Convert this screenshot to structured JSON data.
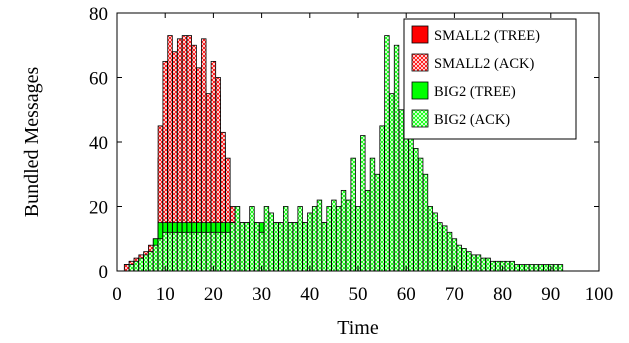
{
  "chart_data": {
    "type": "bar",
    "title": "",
    "xlabel": "Time",
    "ylabel": "Bundled Messages",
    "xlim": [
      0,
      100
    ],
    "ylim": [
      0,
      80
    ],
    "xticks": [
      0,
      10,
      20,
      30,
      40,
      50,
      60,
      70,
      80,
      90,
      100
    ],
    "yticks": [
      0,
      20,
      40,
      60,
      80
    ],
    "grid": false,
    "legend": "top-right",
    "series": [
      {
        "name": "SMALL2 (TREE)",
        "color": "#ff0000",
        "pattern": "solid",
        "x": [
          2,
          3,
          4,
          5,
          6,
          7,
          8,
          9,
          10,
          11,
          12,
          13,
          14,
          15,
          16,
          17,
          18,
          19,
          20,
          21,
          22,
          23,
          24,
          25,
          26,
          27,
          28,
          29,
          30,
          31,
          32,
          33,
          34,
          35,
          36,
          37,
          38,
          39,
          40,
          41,
          42,
          43,
          44,
          45,
          46,
          47,
          48,
          49,
          50,
          51,
          52,
          53,
          54,
          55
        ],
        "values": [
          2,
          3,
          3,
          4,
          5,
          6,
          8,
          35,
          55,
          60,
          62,
          58,
          60,
          62,
          60,
          55,
          58,
          45,
          50,
          55,
          40,
          15,
          12,
          10,
          9,
          8,
          8,
          7,
          7,
          6,
          6,
          6,
          5,
          5,
          5,
          5,
          4,
          4,
          4,
          4,
          4,
          3,
          3,
          3,
          3,
          3,
          3,
          3,
          3,
          3,
          3,
          3,
          2,
          2
        ]
      },
      {
        "name": "SMALL2 (ACK)",
        "color": "#ff0000",
        "pattern": "crosshatch",
        "x": [
          2,
          3,
          4,
          5,
          6,
          7,
          8,
          9,
          10,
          11,
          12,
          13,
          14,
          15,
          16,
          17,
          18,
          19,
          20,
          21,
          22,
          23,
          24,
          25,
          26,
          27,
          28,
          29,
          30,
          31,
          32,
          33,
          34,
          35,
          36,
          37,
          38,
          39,
          40,
          41,
          42,
          43,
          44,
          45,
          46,
          47,
          48,
          49,
          50,
          51,
          52,
          53,
          54,
          55
        ],
        "values": [
          2,
          3,
          4,
          5,
          6,
          8,
          10,
          45,
          65,
          73,
          68,
          72,
          73,
          73,
          70,
          63,
          72,
          55,
          65,
          60,
          43,
          35,
          20,
          15,
          12,
          10,
          10,
          9,
          9,
          8,
          8,
          7,
          7,
          6,
          6,
          6,
          6,
          5,
          5,
          5,
          5,
          4,
          4,
          4,
          4,
          4,
          3,
          3,
          3,
          3,
          3,
          3,
          3,
          3
        ]
      },
      {
        "name": "BIG2 (TREE)",
        "color": "#00ff00",
        "pattern": "solid",
        "x": [
          8,
          9,
          10,
          11,
          12,
          13,
          14,
          15,
          16,
          17,
          18,
          19,
          20,
          21,
          22,
          23,
          24,
          25,
          26,
          27,
          28,
          29,
          30,
          31,
          32,
          33,
          34,
          35,
          36,
          37,
          38,
          39,
          40,
          41,
          42,
          43,
          44,
          45,
          46,
          47,
          48,
          49,
          50,
          51,
          52,
          53,
          54,
          55,
          56,
          57,
          58,
          59,
          60,
          61,
          62,
          63,
          64,
          65
        ],
        "values": [
          10,
          15,
          15,
          15,
          15,
          15,
          15,
          15,
          15,
          15,
          15,
          15,
          15,
          15,
          15,
          15,
          15,
          15,
          15,
          15,
          15,
          15,
          15,
          15,
          15,
          15,
          15,
          15,
          15,
          15,
          15,
          15,
          15,
          15,
          15,
          15,
          15,
          15,
          15,
          15,
          15,
          15,
          15,
          15,
          15,
          15,
          15,
          15,
          15,
          10,
          5,
          3,
          2,
          2,
          1,
          1,
          1,
          1
        ]
      },
      {
        "name": "BIG2 (ACK)",
        "color": "#00ff00",
        "pattern": "crosshatch",
        "x": [
          3,
          4,
          5,
          6,
          7,
          8,
          9,
          10,
          11,
          12,
          13,
          14,
          15,
          16,
          17,
          18,
          19,
          20,
          21,
          22,
          23,
          24,
          25,
          26,
          27,
          28,
          29,
          30,
          31,
          32,
          33,
          34,
          35,
          36,
          37,
          38,
          39,
          40,
          41,
          42,
          43,
          44,
          45,
          46,
          47,
          48,
          49,
          50,
          51,
          52,
          53,
          54,
          55,
          56,
          57,
          58,
          59,
          60,
          61,
          62,
          63,
          64,
          65,
          66,
          67,
          68,
          69,
          70,
          71,
          72,
          73,
          74,
          75,
          76,
          77,
          78,
          79,
          80,
          81,
          82,
          83,
          84,
          85,
          86,
          87,
          88,
          89,
          90,
          91,
          92
        ],
        "values": [
          2,
          3,
          4,
          5,
          6,
          8,
          10,
          12,
          12,
          12,
          12,
          12,
          12,
          12,
          12,
          12,
          12,
          12,
          12,
          12,
          12,
          15,
          20,
          15,
          15,
          20,
          15,
          12,
          20,
          18,
          15,
          15,
          20,
          15,
          15,
          20,
          15,
          18,
          20,
          22,
          15,
          20,
          22,
          20,
          25,
          22,
          35,
          20,
          42,
          25,
          35,
          30,
          45,
          73,
          55,
          70,
          50,
          42,
          45,
          38,
          35,
          30,
          20,
          18,
          15,
          14,
          12,
          10,
          8,
          7,
          6,
          5,
          5,
          4,
          4,
          3,
          3,
          3,
          3,
          3,
          2,
          2,
          2,
          2,
          2,
          2,
          2,
          2,
          2,
          2
        ]
      }
    ]
  }
}
